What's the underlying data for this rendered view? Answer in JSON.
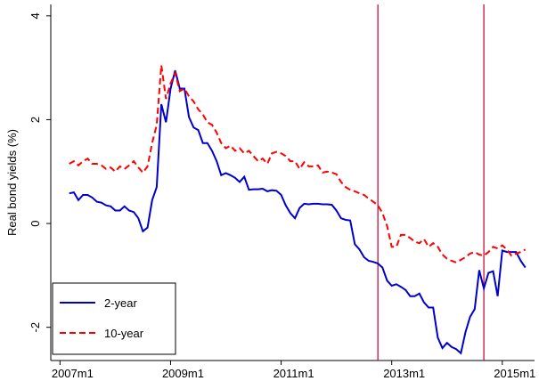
{
  "chart_data": {
    "type": "line",
    "y_label": "Real bond yields (%)",
    "x": [
      566,
      567,
      568,
      569,
      570,
      571,
      572,
      573,
      574,
      575,
      576,
      577,
      578,
      579,
      580,
      581,
      582,
      583,
      584,
      585,
      586,
      587,
      588,
      589,
      590,
      591,
      592,
      593,
      594,
      595,
      596,
      597,
      598,
      599,
      600,
      601,
      602,
      603,
      604,
      605,
      606,
      607,
      608,
      609,
      610,
      611,
      612,
      613,
      614,
      615,
      616,
      617,
      618,
      619,
      620,
      621,
      622,
      623,
      624,
      625,
      626,
      627,
      628,
      629,
      630,
      631,
      632,
      633,
      634,
      635,
      636,
      637,
      638,
      639,
      640,
      641,
      642,
      643,
      644,
      645,
      646,
      647,
      648,
      649,
      650,
      651,
      652,
      653,
      654,
      655,
      656,
      657,
      658,
      659,
      660,
      661,
      662,
      663,
      664,
      665
    ],
    "series": [
      {
        "name": "2-year",
        "color": "#0000cc",
        "dash": "solid",
        "values": [
          0.58,
          0.6,
          0.45,
          0.55,
          0.55,
          0.5,
          0.42,
          0.4,
          0.35,
          0.33,
          0.25,
          0.25,
          0.33,
          0.25,
          0.22,
          0.1,
          -0.15,
          -0.08,
          0.45,
          0.7,
          2.3,
          1.95,
          2.6,
          2.95,
          2.6,
          2.6,
          2.05,
          1.85,
          1.8,
          1.55,
          1.55,
          1.4,
          1.2,
          0.93,
          0.97,
          0.93,
          0.88,
          0.8,
          0.9,
          0.65,
          0.66,
          0.66,
          0.67,
          0.62,
          0.64,
          0.63,
          0.55,
          0.35,
          0.2,
          0.1,
          0.3,
          0.38,
          0.37,
          0.38,
          0.38,
          0.37,
          0.37,
          0.36,
          0.25,
          0.1,
          0.07,
          0.06,
          -0.4,
          -0.5,
          -0.65,
          -0.72,
          -0.74,
          -0.77,
          -0.85,
          -1.1,
          -1.2,
          -1.17,
          -1.22,
          -1.28,
          -1.4,
          -1.4,
          -1.35,
          -1.52,
          -1.62,
          -1.62,
          -2.2,
          -2.4,
          -2.3,
          -2.38,
          -2.42,
          -2.5,
          -2.1,
          -1.8,
          -1.65,
          -0.9,
          -1.25,
          -0.95,
          -0.92,
          -1.4,
          -0.52,
          -0.55,
          -0.55,
          -0.55,
          -0.72,
          -0.85
        ]
      },
      {
        "name": "10-year",
        "color": "#ff0000",
        "dash": "dashed",
        "values": [
          1.15,
          1.2,
          1.12,
          1.2,
          1.25,
          1.15,
          1.15,
          1.12,
          1.05,
          1.08,
          1.0,
          1.1,
          1.05,
          1.12,
          1.2,
          1.08,
          0.98,
          1.1,
          1.55,
          1.9,
          3.05,
          2.4,
          2.7,
          2.9,
          2.55,
          2.6,
          2.45,
          2.35,
          2.2,
          2.1,
          1.95,
          1.9,
          1.75,
          1.55,
          1.45,
          1.5,
          1.4,
          1.45,
          1.35,
          1.4,
          1.3,
          1.2,
          1.25,
          1.15,
          1.35,
          1.38,
          1.35,
          1.3,
          1.2,
          1.2,
          1.05,
          1.18,
          1.1,
          1.1,
          1.12,
          0.98,
          1.0,
          0.98,
          0.95,
          0.8,
          0.7,
          0.65,
          0.62,
          0.58,
          0.55,
          0.48,
          0.42,
          0.35,
          0.2,
          -0.05,
          -0.45,
          -0.45,
          -0.22,
          -0.22,
          -0.28,
          -0.35,
          -0.38,
          -0.3,
          -0.45,
          -0.38,
          -0.45,
          -0.6,
          -0.68,
          -0.72,
          -0.75,
          -0.7,
          -0.65,
          -0.58,
          -0.55,
          -0.6,
          -0.62,
          -0.55,
          -0.45,
          -0.48,
          -0.42,
          -0.5,
          -0.62,
          -0.58,
          -0.55,
          -0.5
        ]
      }
    ],
    "vlines": [
      633,
      656
    ],
    "vline_color": "#c8103c",
    "xlim": [
      562,
      667
    ],
    "xticks": [
      {
        "value": 564,
        "label": "2007m1"
      },
      {
        "value": 588,
        "label": "2009m1"
      },
      {
        "value": 612,
        "label": "2011m1"
      },
      {
        "value": 636,
        "label": "2013m1"
      },
      {
        "value": 660,
        "label": "2015m1"
      }
    ],
    "ylim": [
      -2.64,
      4.22
    ],
    "yticks": [
      -2,
      0,
      2,
      4
    ],
    "grid": false,
    "legend": "lower left"
  }
}
